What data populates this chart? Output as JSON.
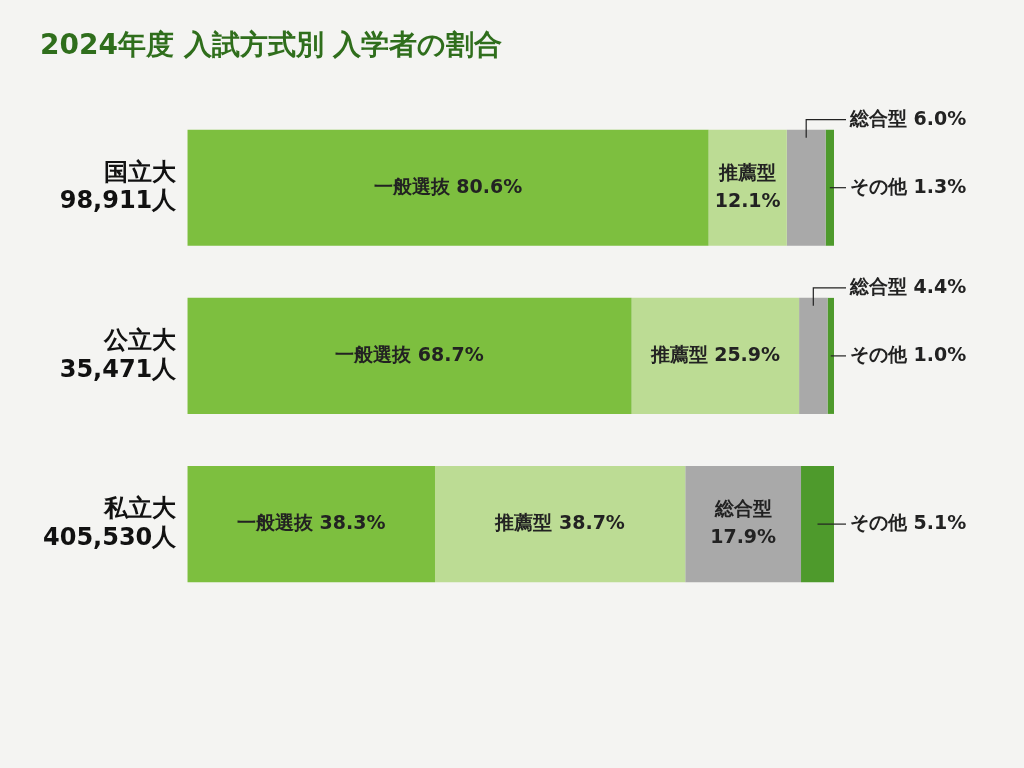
{
  "chart_data": {
    "type": "bar",
    "orientation": "horizontal",
    "stacked": true,
    "title": "2024年度 入試方式別 入学者の割合",
    "categories": [
      "国立大\n98,911人",
      "公立大\n35,471人",
      "私立大\n405,530人"
    ],
    "xlim": [
      0,
      100
    ],
    "tick_labels": "y",
    "legend": false,
    "series": [
      {
        "name": "一般選抜",
        "color": "#7dbf3f",
        "values": [
          80.6,
          68.7,
          38.3
        ],
        "value_labels": [
          "80.6%",
          "68.7%",
          "38.3%"
        ]
      },
      {
        "name": "推薦型",
        "color": "#bcdc94",
        "values": [
          12.1,
          25.9,
          38.7
        ],
        "value_labels": [
          "12.1%",
          "25.9%",
          "38.7%"
        ]
      },
      {
        "name": "総合型",
        "color": "#a9a9a9",
        "values": [
          6.0,
          4.4,
          17.9
        ],
        "value_labels": [
          "6.0%",
          "4.4%",
          "17.9%"
        ]
      },
      {
        "name": "その他",
        "color": "#4e9a2c",
        "values": [
          1.3,
          1.0,
          5.1
        ],
        "value_labels": [
          "1.3%",
          "1.0%",
          "5.1%"
        ]
      }
    ]
  }
}
